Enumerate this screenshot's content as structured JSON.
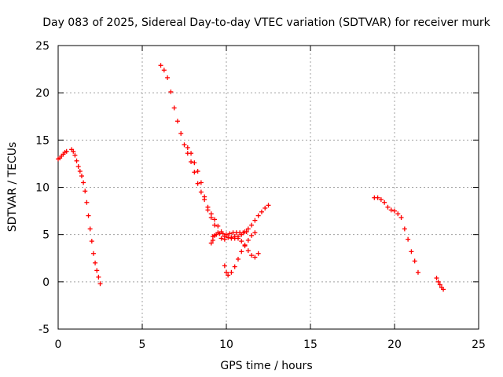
{
  "chart_data": {
    "type": "scatter",
    "title": "Day 083 of 2025, Sidereal Day-to-day VTEC variation (SDTVAR) for receiver murk",
    "xlabel": "GPS time / hours",
    "ylabel": "SDTVAR / TECUs",
    "xlim": [
      0,
      25
    ],
    "ylim": [
      -5,
      25
    ],
    "x_ticks": [
      0,
      5,
      10,
      15,
      20,
      25
    ],
    "y_ticks": [
      -5,
      0,
      5,
      10,
      15,
      20,
      25
    ],
    "x_tick_labels": [
      "0",
      "5",
      "10",
      "15",
      "20",
      "25"
    ],
    "y_tick_labels": [
      "-5",
      "0",
      "5",
      "10",
      "15",
      "20",
      "25"
    ],
    "grid": true,
    "marker": "+",
    "marker_color": "#ff0000",
    "series": [
      {
        "name": "SDTVAR",
        "segments": [
          {
            "x": [
              0.0,
              0.1,
              0.2,
              0.3,
              0.4,
              0.5
            ],
            "y": [
              13.0,
              13.1,
              13.3,
              13.5,
              13.7,
              13.8
            ]
          },
          {
            "x": [
              0.8,
              0.9,
              1.0,
              1.1,
              1.2,
              1.3,
              1.4,
              1.5,
              1.6,
              1.7,
              1.8,
              1.9,
              2.0,
              2.1,
              2.2,
              2.3,
              2.4,
              2.5
            ],
            "y": [
              14.0,
              13.8,
              13.4,
              12.8,
              12.2,
              11.7,
              11.2,
              10.5,
              9.6,
              8.4,
              7.0,
              5.6,
              4.3,
              3.0,
              2.0,
              1.2,
              0.5,
              -0.2
            ]
          },
          {
            "x": [
              6.1,
              6.3,
              6.5,
              6.7,
              6.9,
              7.1,
              7.3,
              7.5,
              7.7,
              7.9,
              8.1,
              8.3,
              8.5,
              8.7,
              8.9,
              9.1,
              9.3,
              9.5,
              9.7,
              9.9,
              10.1,
              10.3,
              10.5,
              10.7,
              10.9,
              11.1,
              11.3,
              11.5,
              11.7,
              11.9
            ],
            "y": [
              22.9,
              22.4,
              21.6,
              20.1,
              18.4,
              17.0,
              15.7,
              14.5,
              13.6,
              12.7,
              11.6,
              10.4,
              9.5,
              8.7,
              7.9,
              7.2,
              6.6,
              5.9,
              5.3,
              4.8,
              4.7,
              4.6,
              4.6,
              4.6,
              4.3,
              3.8,
              3.3,
              2.8,
              2.6,
              3.0
            ]
          },
          {
            "x": [
              7.7,
              7.9,
              8.1,
              8.3,
              8.5,
              8.7,
              8.9,
              9.1,
              9.3,
              9.5,
              9.7,
              9.9,
              10.1,
              10.3,
              10.5,
              10.7,
              10.9,
              11.1,
              11.3,
              11.5,
              11.7,
              11.9,
              12.1,
              12.3,
              12.5
            ],
            "y": [
              14.2,
              13.6,
              12.6,
              11.7,
              10.5,
              9.0,
              7.6,
              6.8,
              6.0,
              5.2,
              4.6,
              4.5,
              4.7,
              4.7,
              4.8,
              4.8,
              5.0,
              5.3,
              5.6,
              6.0,
              6.5,
              7.0,
              7.4,
              7.8,
              8.1
            ]
          },
          {
            "x": [
              9.2,
              9.4,
              9.6,
              9.8,
              10.0,
              10.2,
              10.4,
              10.6,
              10.8,
              11.0,
              11.2
            ],
            "y": [
              4.8,
              5.0,
              5.1,
              5.1,
              5.0,
              5.1,
              5.2,
              5.2,
              5.2,
              5.2,
              5.3
            ]
          },
          {
            "x": [
              9.9,
              10.0,
              10.1,
              10.3,
              10.5,
              10.7,
              10.9,
              11.1,
              11.3,
              11.5,
              11.7
            ],
            "y": [
              1.7,
              1.0,
              0.7,
              1.0,
              1.6,
              2.4,
              3.2,
              3.9,
              4.4,
              4.9,
              5.2
            ]
          },
          {
            "x": [
              9.1,
              9.2,
              9.3
            ],
            "y": [
              4.1,
              4.4,
              4.9
            ]
          },
          {
            "x": [
              18.8,
              19.0,
              19.2,
              19.4,
              19.6,
              19.8,
              20.0,
              20.2,
              20.4,
              20.6,
              20.8,
              21.0,
              21.2,
              21.4
            ],
            "y": [
              8.9,
              8.9,
              8.7,
              8.4,
              7.9,
              7.6,
              7.5,
              7.2,
              6.8,
              5.6,
              4.5,
              3.2,
              2.2,
              1.0
            ]
          },
          {
            "x": [
              22.5,
              22.6,
              22.7,
              22.8,
              22.9
            ],
            "y": [
              0.4,
              0.0,
              -0.3,
              -0.6,
              -0.8
            ]
          }
        ]
      }
    ]
  }
}
